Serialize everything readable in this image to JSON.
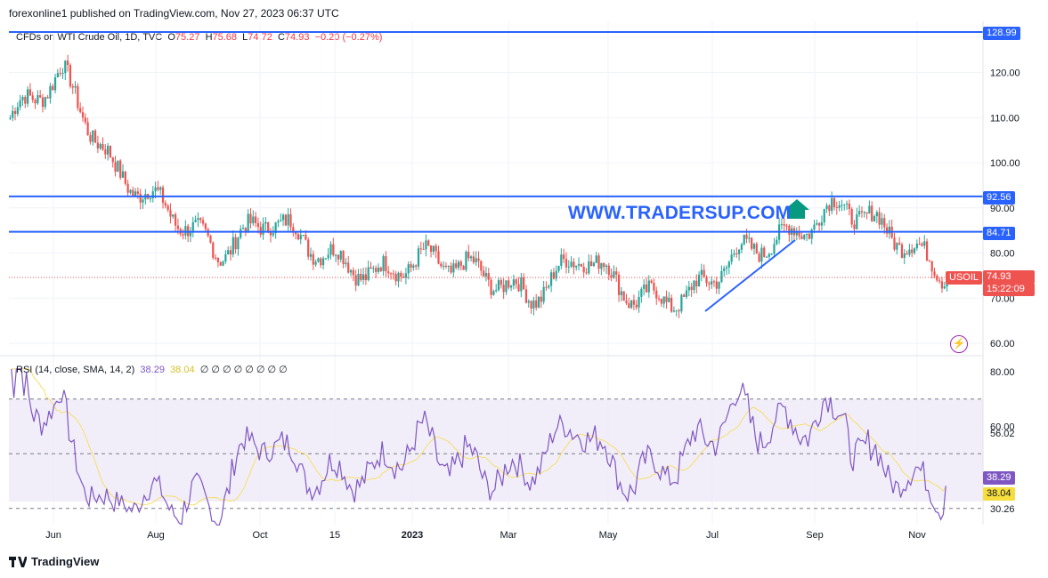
{
  "header": {
    "published": "forexonline1 published on TradingView.com, Nov 27, 2023 06:37 UTC"
  },
  "legend": {
    "symbol": "CFDs on WTI Crude Oil, 1D, TVC",
    "o_label": "O",
    "o": "75.27",
    "h_label": "H",
    "h": "75.68",
    "l_label": "L",
    "l": "74.72",
    "c_label": "C",
    "c": "74.93",
    "change": "−0.20 (−0.27%)"
  },
  "watermark": "WWW.TRADERSUP.COM",
  "price_tags": {
    "r1": "128.99",
    "r2": "92.56",
    "r3": "84.71",
    "last": "74.93",
    "ticker": "USOIL",
    "countdown": "15:22:09"
  },
  "rsi_legend": {
    "label": "RSI (14, close, SMA, 14, 2)",
    "rsi": "38.29",
    "sma": "38.04",
    "empties": "∅ ∅ ∅ ∅ ∅ ∅ ∅ ∅"
  },
  "rsi_tags": {
    "rsi": "38.29",
    "sma": "38.04",
    "level_hi": "56.02",
    "level_lo": "30.26"
  },
  "footer": {
    "brand": "TradingView"
  },
  "colors": {
    "up": "#26a69a",
    "down": "#ef5350",
    "hline": "#2962ff",
    "rsi": "#7e57c2",
    "rsi_sma": "#f5de6a",
    "rsi_band": "#ede7f6"
  },
  "chart_data": [
    {
      "type": "candlestick",
      "title": "CFDs on WTI Crude Oil, 1D, TVC",
      "x_ticks": [
        "Jun",
        "Aug",
        "Oct",
        "15",
        "2023",
        "Mar",
        "May",
        "Jul",
        "Sep",
        "Nov"
      ],
      "y_ticks": [
        "60.00",
        "70.00",
        "80.00",
        "90.00",
        "100.00",
        "110.00",
        "120.00"
      ],
      "ylim": [
        57,
        130
      ],
      "horizontal_levels": [
        128.99,
        92.56,
        84.71
      ],
      "last_price": 74.93,
      "trendline": {
        "from": [
          "Jun 2023",
          67.5
        ],
        "to": [
          "Aug 2023",
          84
        ]
      },
      "approx_closes_monthly": [
        {
          "x": "May 2022",
          "y": 110
        },
        {
          "x": "Jun 2022",
          "y": 120
        },
        {
          "x": "Jul 2022",
          "y": 98
        },
        {
          "x": "Aug 2022",
          "y": 90
        },
        {
          "x": "Sep 2022",
          "y": 80
        },
        {
          "x": "Oct 2022",
          "y": 88
        },
        {
          "x": "Nov 2022",
          "y": 80
        },
        {
          "x": "Dec 2022",
          "y": 75
        },
        {
          "x": "Jan 2023",
          "y": 79
        },
        {
          "x": "Feb 2023",
          "y": 76
        },
        {
          "x": "Mar 2023",
          "y": 70
        },
        {
          "x": "Apr 2023",
          "y": 80
        },
        {
          "x": "May 2023",
          "y": 70
        },
        {
          "x": "Jun 2023",
          "y": 70
        },
        {
          "x": "Jul 2023",
          "y": 80
        },
        {
          "x": "Aug 2023",
          "y": 84
        },
        {
          "x": "Sep 2023",
          "y": 91
        },
        {
          "x": "Oct 2023",
          "y": 84
        },
        {
          "x": "Nov 2023",
          "y": 75
        }
      ]
    },
    {
      "type": "line",
      "title": "RSI (14, close, SMA, 14, 2)",
      "y_ticks": [
        "30.26",
        "56.02",
        "60.00",
        "80.00"
      ],
      "ylim": [
        22,
        82
      ],
      "bands": [
        70,
        50,
        30
      ],
      "series": [
        {
          "name": "RSI",
          "last": 38.29
        },
        {
          "name": "SMA",
          "last": 38.04
        }
      ]
    }
  ]
}
